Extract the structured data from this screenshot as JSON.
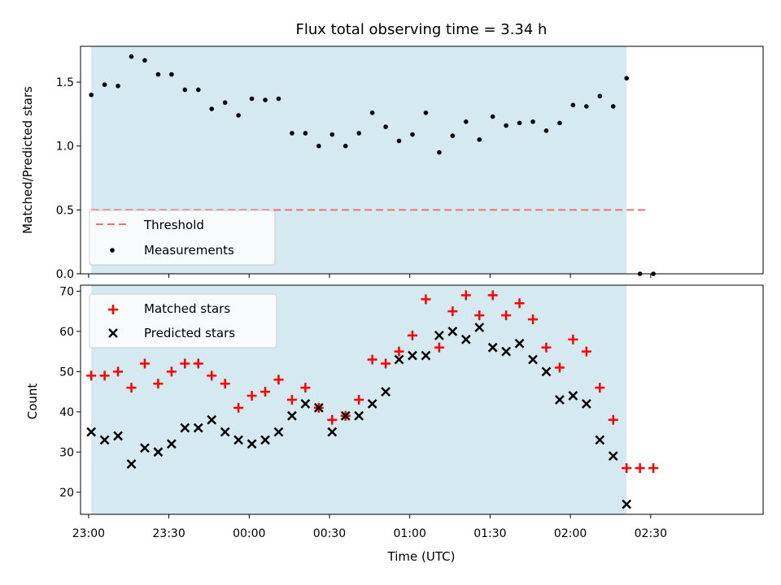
{
  "chart_data": [
    {
      "type": "scatter",
      "title": "Flux total observing time = 3.34 h",
      "xlabel": "",
      "ylabel": "Matched/Predicted stars",
      "ylim": [
        0,
        1.78
      ],
      "yticks": [
        "0.0",
        "0.5",
        "1.0",
        "1.5"
      ],
      "xlim": [
        "22:57",
        "03:12"
      ],
      "shaded_region": {
        "start": "23:01",
        "end": "02:21",
        "color": "#d4eaf0"
      },
      "legend": {
        "placement": "lower-left",
        "entries": [
          "Threshold",
          "Measurements"
        ]
      },
      "threshold": {
        "name": "Threshold",
        "value": 0.5,
        "x_start": "23:01",
        "x_end": "02:28",
        "color": "#f07070",
        "style": "dashed"
      },
      "series": [
        {
          "name": "Measurements",
          "color": "#000000",
          "marker": "dot",
          "x": [
            "23:01",
            "23:06",
            "23:11",
            "23:16",
            "23:21",
            "23:26",
            "23:31",
            "23:36",
            "23:41",
            "23:46",
            "23:51",
            "23:56",
            "00:01",
            "00:06",
            "00:11",
            "00:16",
            "00:21",
            "00:26",
            "00:31",
            "00:36",
            "00:41",
            "00:46",
            "00:51",
            "00:56",
            "01:01",
            "01:06",
            "01:11",
            "01:16",
            "01:21",
            "01:26",
            "01:31",
            "01:36",
            "01:41",
            "01:46",
            "01:51",
            "01:56",
            "02:01",
            "02:06",
            "02:11",
            "02:16",
            "02:21",
            "02:26",
            "02:31"
          ],
          "y": [
            1.4,
            1.48,
            1.47,
            1.7,
            1.67,
            1.56,
            1.56,
            1.44,
            1.44,
            1.29,
            1.34,
            1.24,
            1.37,
            1.36,
            1.37,
            1.1,
            1.1,
            1.0,
            1.09,
            1.0,
            1.1,
            1.26,
            1.15,
            1.04,
            1.09,
            1.26,
            0.95,
            1.08,
            1.19,
            1.05,
            1.23,
            1.16,
            1.18,
            1.19,
            1.12,
            1.18,
            1.32,
            1.31,
            1.39,
            1.31,
            1.53,
            0.0,
            0.0
          ]
        }
      ]
    },
    {
      "type": "scatter",
      "title": "",
      "xlabel": "Time (UTC)",
      "ylabel": "Count",
      "ylim": [
        14.5,
        71.5
      ],
      "yticks": [
        "20",
        "30",
        "40",
        "50",
        "60",
        "70"
      ],
      "xlim": [
        "22:57",
        "03:12"
      ],
      "xticks": [
        "23:00",
        "23:30",
        "00:00",
        "00:30",
        "01:00",
        "01:30",
        "02:00",
        "02:30"
      ],
      "shaded_region": {
        "start": "23:01",
        "end": "02:21",
        "color": "#d4eaf0"
      },
      "legend": {
        "placement": "upper-left",
        "entries": [
          "Matched stars",
          "Predicted stars"
        ]
      },
      "series": [
        {
          "name": "Matched stars",
          "color": "#ff0000",
          "marker": "plus",
          "x": [
            "23:01",
            "23:06",
            "23:11",
            "23:16",
            "23:21",
            "23:26",
            "23:31",
            "23:36",
            "23:41",
            "23:46",
            "23:51",
            "23:56",
            "00:01",
            "00:06",
            "00:11",
            "00:16",
            "00:21",
            "00:26",
            "00:31",
            "00:36",
            "00:41",
            "00:46",
            "00:51",
            "00:56",
            "01:01",
            "01:06",
            "01:11",
            "01:16",
            "01:21",
            "01:26",
            "01:31",
            "01:36",
            "01:41",
            "01:46",
            "01:51",
            "01:56",
            "02:01",
            "02:06",
            "02:11",
            "02:16",
            "02:21",
            "02:26",
            "02:31"
          ],
          "y": [
            49,
            49,
            50,
            46,
            52,
            47,
            50,
            52,
            52,
            49,
            47,
            41,
            44,
            45,
            48,
            43,
            46,
            41,
            38,
            39,
            43,
            53,
            52,
            55,
            59,
            68,
            56,
            65,
            69,
            64,
            69,
            64,
            67,
            63,
            56,
            51,
            58,
            55,
            46,
            38,
            26,
            26,
            26
          ]
        },
        {
          "name": "Predicted stars",
          "color": "#000000",
          "marker": "x",
          "x": [
            "23:01",
            "23:06",
            "23:11",
            "23:16",
            "23:21",
            "23:26",
            "23:31",
            "23:36",
            "23:41",
            "23:46",
            "23:51",
            "23:56",
            "00:01",
            "00:06",
            "00:11",
            "00:16",
            "00:21",
            "00:26",
            "00:31",
            "00:36",
            "00:41",
            "00:46",
            "00:51",
            "00:56",
            "01:01",
            "01:06",
            "01:11",
            "01:16",
            "01:21",
            "01:26",
            "01:31",
            "01:36",
            "01:41",
            "01:46",
            "01:51",
            "01:56",
            "02:01",
            "02:06",
            "02:11",
            "02:16",
            "02:21"
          ],
          "y": [
            35,
            33,
            34,
            27,
            31,
            30,
            32,
            36,
            36,
            38,
            35,
            33,
            32,
            33,
            35,
            39,
            42,
            41,
            35,
            39,
            39,
            42,
            45,
            53,
            54,
            54,
            59,
            60,
            58,
            61,
            56,
            55,
            57,
            53,
            50,
            43,
            44,
            42,
            33,
            29,
            17
          ]
        }
      ]
    }
  ]
}
